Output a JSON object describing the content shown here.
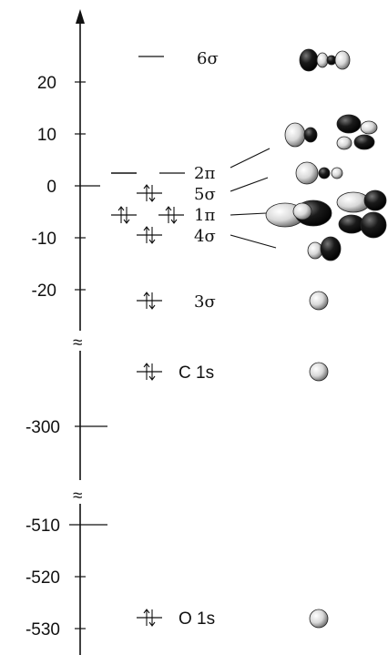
{
  "axis": {
    "ticks": [
      {
        "label": "20",
        "value": 20
      },
      {
        "label": "10",
        "value": 10
      },
      {
        "label": "0",
        "value": 0
      },
      {
        "label": "-10",
        "value": -10
      },
      {
        "label": "-20",
        "value": -20
      },
      {
        "label": "-300",
        "value": -300
      },
      {
        "label": "-510",
        "value": -510
      },
      {
        "label": "-520",
        "value": -520
      },
      {
        "label": "-530",
        "value": -530
      }
    ],
    "break_symbol": "≈"
  },
  "orbitals": [
    {
      "id": "6sigma",
      "label": "6σ",
      "occupied": false
    },
    {
      "id": "2pi",
      "label": "2π",
      "occupied": false
    },
    {
      "id": "5sigma",
      "label": "5σ",
      "occupied": true
    },
    {
      "id": "1pi",
      "label": "1π",
      "occupied": true,
      "degenerate": 2
    },
    {
      "id": "4sigma",
      "label": "4σ",
      "occupied": true
    },
    {
      "id": "3sigma",
      "label": "3σ",
      "occupied": true
    },
    {
      "id": "c1s",
      "label": "C 1s",
      "occupied": true
    },
    {
      "id": "o1s",
      "label": "O 1s",
      "occupied": true
    }
  ]
}
